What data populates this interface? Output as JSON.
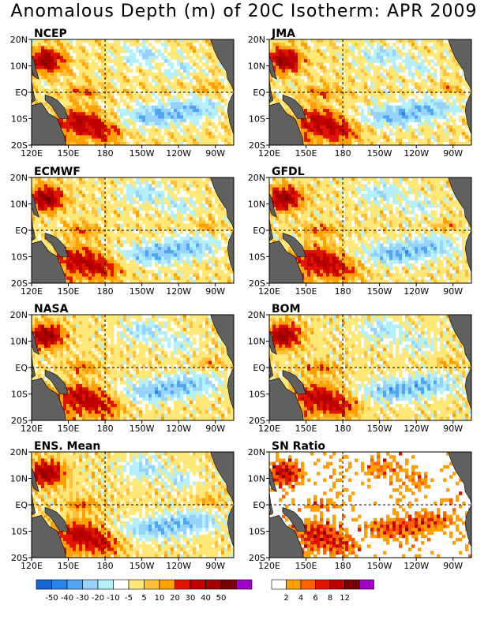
{
  "title": "Anomalous Depth (m) of 20C Isotherm: APR 2009",
  "chart_data": [
    {
      "type": "heatmap",
      "title": "NCEP",
      "pattern": 0
    },
    {
      "type": "heatmap",
      "title": "JMA",
      "pattern": 1
    },
    {
      "type": "heatmap",
      "title": "ECMWF",
      "pattern": 2
    },
    {
      "type": "heatmap",
      "title": "GFDL",
      "pattern": 3
    },
    {
      "type": "heatmap",
      "title": "NASA",
      "pattern": 4
    },
    {
      "type": "heatmap",
      "title": "BOM",
      "pattern": 5
    },
    {
      "type": "heatmap",
      "title": "ENS. Mean",
      "pattern": 6
    },
    {
      "type": "heatmap",
      "title": "SN Ratio",
      "pattern": 7,
      "scale": "sn"
    }
  ],
  "axes": {
    "xticks": [
      "120E",
      "150E",
      "180",
      "150W",
      "120W",
      "90W"
    ],
    "xtick_lon": [
      120,
      150,
      180,
      210,
      240,
      270
    ],
    "yticks": [
      "20N",
      "10N",
      "EQ",
      "10S",
      "20S"
    ],
    "ytick_lat": [
      20,
      10,
      0,
      -10,
      -20
    ],
    "lon_range": [
      120,
      285
    ],
    "lat_range": [
      -20,
      20
    ],
    "dashed_lines": {
      "lon": 180,
      "lat": 0
    }
  },
  "anomaly_scale": {
    "colors": [
      "#1464d2",
      "#2882f0",
      "#50a5f5",
      "#96d2fa",
      "#b4f0fa",
      "#ffffff",
      "#ffe878",
      "#ffc03c",
      "#ffa000",
      "#e11400",
      "#c00000",
      "#a50000",
      "#7d0000",
      "#a000c8"
    ],
    "labels": [
      "-50",
      "-40",
      "-30",
      "-20",
      "-10",
      "-5",
      "5",
      "10",
      "20",
      "30",
      "40",
      "50"
    ]
  },
  "sn_scale": {
    "colors": [
      "#ffffff",
      "#ffa000",
      "#ff6000",
      "#e11400",
      "#c00000",
      "#7d0000",
      "#a000c8"
    ],
    "labels": [
      "2",
      "4",
      "6",
      "8",
      "12"
    ]
  },
  "colors": {
    "land": "#606060",
    "frame": "#000000"
  }
}
